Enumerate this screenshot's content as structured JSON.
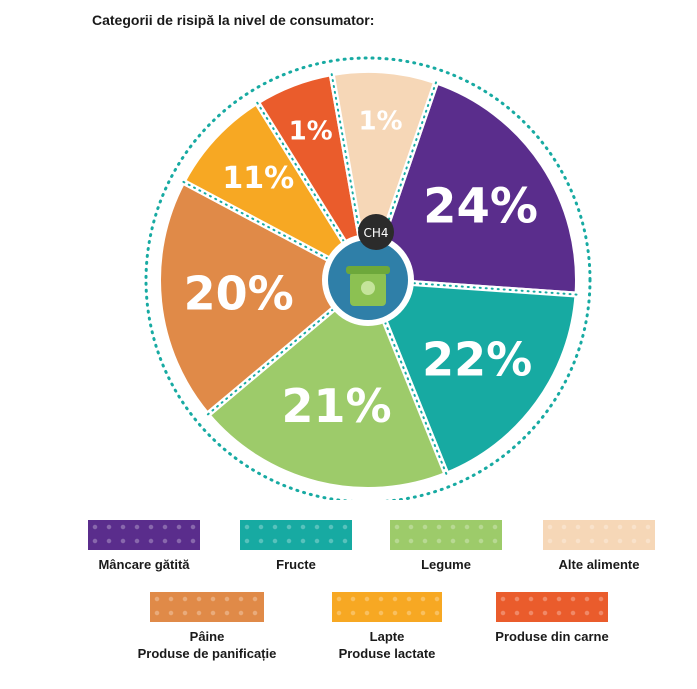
{
  "title": "Categorii de risipă la nivel de consumator:",
  "chart_data": {
    "type": "pie",
    "slices": [
      {
        "label": "Mâncare gătită",
        "value": 24,
        "display": "24%",
        "color": "#5a2d8c"
      },
      {
        "label": "Fructe",
        "value": 22,
        "display": "22%",
        "color": "#17aaa2"
      },
      {
        "label": "Legume",
        "value": 21,
        "display": "21%",
        "color": "#9dcb6a"
      },
      {
        "label": "Pâine / Produse de panificație",
        "value": 20,
        "display": "20%",
        "color": "#e08a48"
      },
      {
        "label": "Lapte / Produse lactate",
        "value": 11,
        "display": "11%",
        "color": "#f7a823"
      },
      {
        "label": "Produse din carne",
        "value": 1,
        "display": "1%",
        "color": "#ea5c2c"
      },
      {
        "label": "Alte alimente",
        "value": 1,
        "display": "1%",
        "color": "#f6d7b7"
      }
    ],
    "center_label": "CH4"
  },
  "legend": [
    {
      "lines": [
        "Mâncare gătită"
      ],
      "color": "#5a2d8c"
    },
    {
      "lines": [
        "Fructe"
      ],
      "color": "#17aaa2"
    },
    {
      "lines": [
        "Legume"
      ],
      "color": "#9dcb6a"
    },
    {
      "lines": [
        "Alte alimente"
      ],
      "color": "#f6d7b7"
    },
    {
      "lines": [
        "Pâine",
        "Produse de panificație"
      ],
      "color": "#e08a48"
    },
    {
      "lines": [
        "Lapte",
        "Produse lactate"
      ],
      "color": "#f7a823"
    },
    {
      "lines": [
        "Produse din carne"
      ],
      "color": "#ea5c2c"
    }
  ]
}
